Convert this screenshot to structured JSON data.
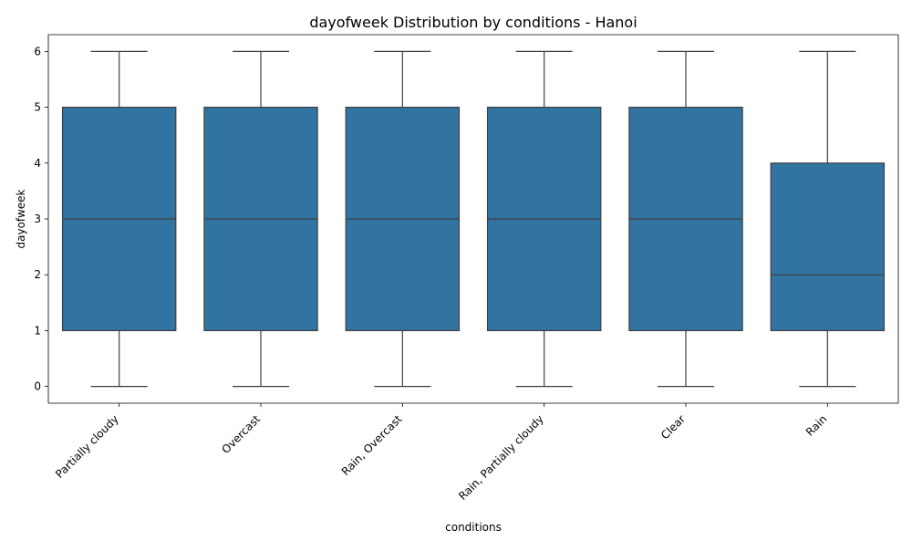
{
  "chart_data": {
    "type": "box",
    "title": "dayofweek Distribution by conditions - Hanoi",
    "xlabel": "conditions",
    "ylabel": "dayofweek",
    "categories": [
      "Partially cloudy",
      "Overcast",
      "Rain, Overcast",
      "Rain, Partially cloudy",
      "Clear",
      "Rain"
    ],
    "boxes": [
      {
        "min": 0,
        "q1": 1,
        "median": 3,
        "q3": 5,
        "max": 6
      },
      {
        "min": 0,
        "q1": 1,
        "median": 3,
        "q3": 5,
        "max": 6
      },
      {
        "min": 0,
        "q1": 1,
        "median": 3,
        "q3": 5,
        "max": 6
      },
      {
        "min": 0,
        "q1": 1,
        "median": 3,
        "q3": 5,
        "max": 6
      },
      {
        "min": 0,
        "q1": 1,
        "median": 3,
        "q3": 5,
        "max": 6
      },
      {
        "min": 0,
        "q1": 1,
        "median": 2,
        "q3": 4,
        "max": 6
      }
    ],
    "ylim": [
      -0.3,
      6.3
    ],
    "yticks": [
      0,
      1,
      2,
      3,
      4,
      5,
      6
    ],
    "box_color": "#3274a1",
    "line_color": "#3f3f3f",
    "grid": false,
    "legend": "none",
    "xtick_rotation_deg": 45
  }
}
